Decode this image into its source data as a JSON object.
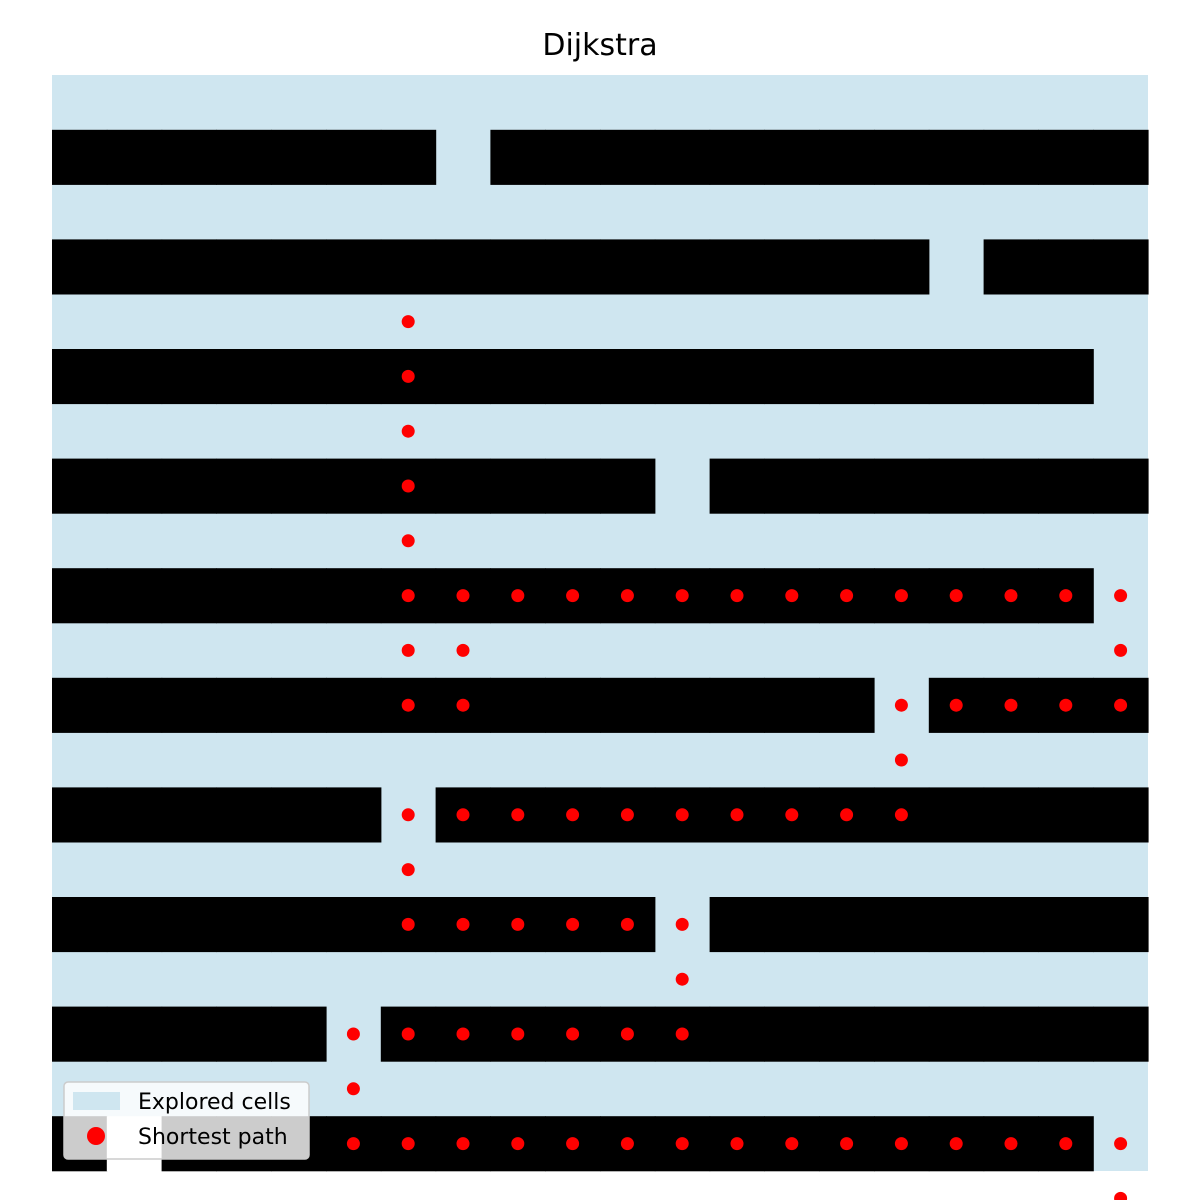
{
  "chart_data": {
    "type": "heatmap",
    "title": "Dijkstra",
    "grid_size": [
      20,
      20
    ],
    "colors": {
      "explored": "#cfe6f0",
      "wall": "#000000",
      "unexplored": "#ffffff",
      "path": "#ff0000"
    },
    "cell_states": {
      "0": "explored",
      "1": "wall",
      "2": "unexplored"
    },
    "grid": [
      [
        0,
        0,
        0,
        0,
        0,
        0,
        0,
        0,
        0,
        0,
        0,
        0,
        0,
        0,
        0,
        0,
        0,
        0,
        0,
        0
      ],
      [
        1,
        1,
        1,
        1,
        1,
        1,
        1,
        0,
        1,
        1,
        1,
        1,
        1,
        1,
        1,
        1,
        1,
        1,
        1,
        1
      ],
      [
        0,
        0,
        0,
        0,
        0,
        0,
        0,
        0,
        0,
        0,
        0,
        0,
        0,
        0,
        0,
        0,
        0,
        0,
        0,
        0
      ],
      [
        1,
        1,
        1,
        1,
        1,
        1,
        1,
        1,
        1,
        1,
        1,
        1,
        1,
        1,
        1,
        1,
        0,
        1,
        1,
        1
      ],
      [
        0,
        0,
        0,
        0,
        0,
        0,
        0,
        0,
        0,
        0,
        0,
        0,
        0,
        0,
        0,
        0,
        0,
        0,
        0,
        0
      ],
      [
        1,
        1,
        1,
        1,
        1,
        1,
        1,
        1,
        1,
        1,
        1,
        1,
        1,
        1,
        1,
        1,
        1,
        1,
        1,
        0
      ],
      [
        0,
        0,
        0,
        0,
        0,
        0,
        0,
        0,
        0,
        0,
        0,
        0,
        0,
        0,
        0,
        0,
        0,
        0,
        0,
        0
      ],
      [
        1,
        1,
        1,
        1,
        1,
        1,
        1,
        1,
        1,
        1,
        1,
        0,
        1,
        1,
        1,
        1,
        1,
        1,
        1,
        1
      ],
      [
        0,
        0,
        0,
        0,
        0,
        0,
        0,
        0,
        0,
        0,
        0,
        0,
        0,
        0,
        0,
        0,
        0,
        0,
        0,
        0
      ],
      [
        1,
        1,
        1,
        1,
        1,
        1,
        1,
        1,
        1,
        1,
        1,
        1,
        1,
        1,
        1,
        1,
        1,
        1,
        1,
        0
      ],
      [
        0,
        0,
        0,
        0,
        0,
        0,
        0,
        0,
        0,
        0,
        0,
        0,
        0,
        0,
        0,
        0,
        0,
        0,
        0,
        0
      ],
      [
        1,
        1,
        1,
        1,
        1,
        1,
        1,
        1,
        1,
        1,
        1,
        1,
        1,
        1,
        1,
        0,
        1,
        1,
        1,
        1
      ],
      [
        0,
        0,
        0,
        0,
        0,
        0,
        0,
        0,
        0,
        0,
        0,
        0,
        0,
        0,
        0,
        0,
        0,
        0,
        0,
        0
      ],
      [
        1,
        1,
        1,
        1,
        1,
        1,
        0,
        1,
        1,
        1,
        1,
        1,
        1,
        1,
        1,
        1,
        1,
        1,
        1,
        1
      ],
      [
        0,
        0,
        0,
        0,
        0,
        0,
        0,
        0,
        0,
        0,
        0,
        0,
        0,
        0,
        0,
        0,
        0,
        0,
        0,
        0
      ],
      [
        1,
        1,
        1,
        1,
        1,
        1,
        1,
        1,
        1,
        1,
        1,
        0,
        1,
        1,
        1,
        1,
        1,
        1,
        1,
        1
      ],
      [
        0,
        0,
        0,
        0,
        0,
        0,
        0,
        0,
        0,
        0,
        0,
        0,
        0,
        0,
        0,
        0,
        0,
        0,
        0,
        0
      ],
      [
        1,
        1,
        1,
        1,
        1,
        0,
        1,
        1,
        1,
        1,
        1,
        1,
        1,
        1,
        1,
        1,
        1,
        1,
        1,
        1
      ],
      [
        0,
        0,
        0,
        0,
        0,
        0,
        0,
        0,
        0,
        0,
        0,
        0,
        0,
        0,
        0,
        0,
        0,
        0,
        0,
        0
      ],
      [
        1,
        2,
        1,
        1,
        1,
        1,
        1,
        1,
        1,
        1,
        1,
        1,
        1,
        1,
        1,
        1,
        1,
        1,
        1,
        0
      ]
    ],
    "path": [
      [
        6,
        4
      ],
      [
        6,
        5
      ],
      [
        6,
        6
      ],
      [
        6,
        7
      ],
      [
        6,
        8
      ],
      [
        6,
        9
      ],
      [
        6,
        10
      ],
      [
        7,
        11
      ],
      [
        6,
        11
      ],
      [
        6,
        9
      ],
      [
        6,
        10
      ],
      [
        6,
        11
      ],
      [
        7,
        10
      ],
      [
        7,
        11
      ],
      [
        7,
        9
      ],
      [
        8,
        9
      ],
      [
        9,
        9
      ],
      [
        10,
        9
      ],
      [
        11,
        9
      ],
      [
        12,
        9
      ],
      [
        13,
        9
      ],
      [
        14,
        9
      ],
      [
        15,
        9
      ],
      [
        16,
        9
      ],
      [
        17,
        9
      ],
      [
        18,
        9
      ],
      [
        19,
        9
      ],
      [
        19,
        10
      ],
      [
        15,
        11
      ],
      [
        16,
        11
      ],
      [
        17,
        11
      ],
      [
        18,
        11
      ],
      [
        19,
        11
      ],
      [
        15,
        12
      ],
      [
        6,
        13
      ],
      [
        7,
        13
      ],
      [
        8,
        13
      ],
      [
        9,
        13
      ],
      [
        10,
        13
      ],
      [
        11,
        13
      ],
      [
        12,
        13
      ],
      [
        13,
        13
      ],
      [
        14,
        13
      ],
      [
        15,
        13
      ],
      [
        6,
        14
      ],
      [
        6,
        15
      ],
      [
        7,
        15
      ],
      [
        8,
        15
      ],
      [
        9,
        15
      ],
      [
        10,
        15
      ],
      [
        11,
        15
      ],
      [
        11,
        16
      ],
      [
        5,
        17
      ],
      [
        6,
        17
      ],
      [
        7,
        17
      ],
      [
        8,
        17
      ],
      [
        9,
        17
      ],
      [
        10,
        17
      ],
      [
        11,
        17
      ],
      [
        5,
        18
      ],
      [
        5,
        19
      ],
      [
        6,
        19
      ],
      [
        7,
        19
      ],
      [
        8,
        19
      ],
      [
        9,
        19
      ],
      [
        10,
        19
      ],
      [
        11,
        19
      ],
      [
        12,
        19
      ],
      [
        13,
        19
      ],
      [
        14,
        19
      ],
      [
        15,
        19
      ],
      [
        16,
        19
      ],
      [
        17,
        19
      ],
      [
        18,
        19
      ],
      [
        19,
        19
      ],
      [
        19,
        20
      ]
    ],
    "legend": {
      "position": "lower left",
      "entries": [
        {
          "label": "Explored cells",
          "kind": "patch",
          "color": "#cfe6f0"
        },
        {
          "label": "Shortest path",
          "kind": "marker",
          "color": "#ff0000"
        }
      ]
    },
    "axes_visible": false
  }
}
